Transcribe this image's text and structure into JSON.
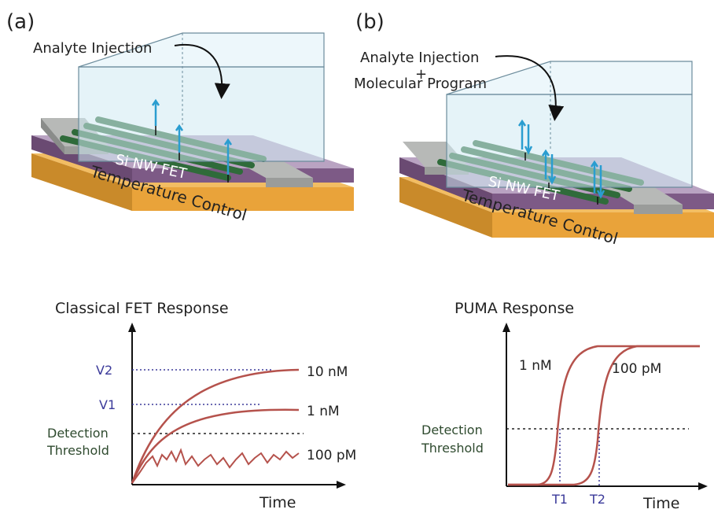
{
  "panel_a": {
    "label": "(a)",
    "injection_label": "Analyte Injection",
    "device_label": "Si NW FET",
    "platform_label": "Temperature Control",
    "plot": {
      "title": "Classical FET Response",
      "y_levels": [
        "V2",
        "V1"
      ],
      "threshold_line1": "Detection",
      "threshold_line2": "Threshold",
      "series_labels": [
        "10 nM",
        "1 nM",
        "100 pM"
      ],
      "x_axis_label": "Time"
    }
  },
  "panel_b": {
    "label": "(b)",
    "injection_line1": "Analyte Injection",
    "injection_plus": "+",
    "injection_line2": "Molecular Program",
    "device_label": "Si NW FET",
    "platform_label": "Temperature Control",
    "plot": {
      "title": "PUMA Response",
      "threshold_line1": "Detection",
      "threshold_line2": "Threshold",
      "series_labels": [
        "1 nM",
        "100 pM"
      ],
      "x_ticks": [
        "T1",
        "T2"
      ],
      "x_axis_label": "Time"
    }
  },
  "colors": {
    "substrate": "#e9a33a",
    "chip": "#7d5a86",
    "contact": "#a6a8a6",
    "nanowire": "#2f6b3a",
    "chamber_fill": "#cfe9f3",
    "chamber_edge": "#6c8c9c",
    "curve": "#b5524c",
    "guide": "#3b3a9a",
    "molecule": "#2a9dd0"
  }
}
